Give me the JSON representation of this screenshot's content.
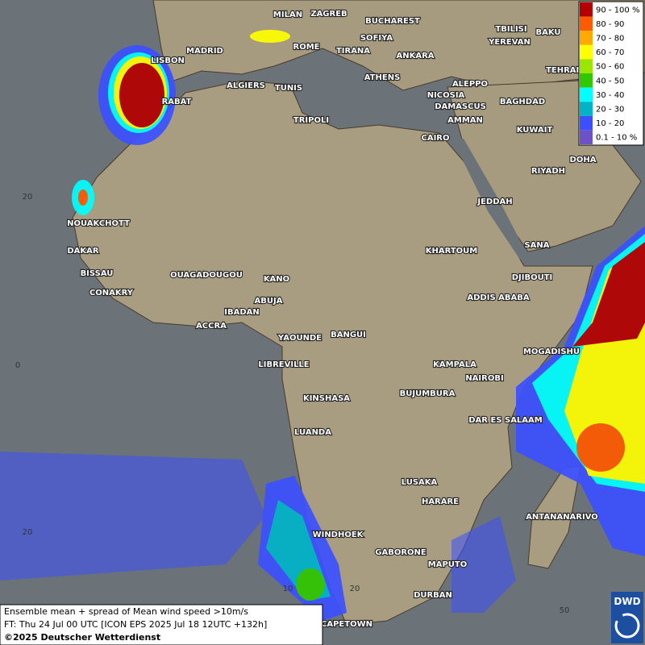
{
  "legend": {
    "items": [
      {
        "label": "90 - 100 %",
        "color": "#b40000"
      },
      {
        "label": "80 - 90",
        "color": "#ff5a00"
      },
      {
        "label": "70 - 80",
        "color": "#ffaa00"
      },
      {
        "label": "60 - 70",
        "color": "#ffff00"
      },
      {
        "label": "50 - 60",
        "color": "#9be600"
      },
      {
        "label": "40 - 50",
        "color": "#32c800"
      },
      {
        "label": "30 - 40",
        "color": "#00ffff"
      },
      {
        "label": "20 - 30",
        "color": "#00b4c8"
      },
      {
        "label": "10 - 20",
        "color": "#3c50ff"
      },
      {
        "label": "0.1 - 10 %",
        "color": "#6e50c8"
      }
    ]
  },
  "cities": [
    "MILAN",
    "ZAGREB",
    "BUCHAREST",
    "SOFIYA",
    "TBILISI",
    "BAKU",
    "YEREVAN",
    "ROME",
    "TIRANA",
    "ANKARA",
    "TEHRAN",
    "LISBON",
    "MADRID",
    "ATHENS",
    "ALGIERS",
    "TUNIS",
    "ALEPPO",
    "RABAT",
    "NICOSIA",
    "BAGHDAD",
    "TRIPOLI",
    "DAMASCUS",
    "AMMAN",
    "KUWAIT",
    "CAIRO",
    "DOHA",
    "RIYADH",
    "JEDDAH",
    "NOUAKCHOTT",
    "SANA",
    "KHARTOUM",
    "DAKAR",
    "BISSAU",
    "DJIBOUTI",
    "OUAGADOUGOU",
    "KANO",
    "CONAKRY",
    "ADDIS ABABA",
    "ABUJA",
    "IBADAN",
    "ACCRA",
    "YAOUNDE",
    "BANGUI",
    "MOGADISHU",
    "LIBREVILLE",
    "KAMPALA",
    "NAIROBI",
    "KINSHASA",
    "BUJUMBURA",
    "DAR ES SALAAM",
    "LUANDA",
    "LUSAKA",
    "HARARE",
    "ANTANANARIVO",
    "WINDHOEK",
    "GABORONE",
    "MAPUTO",
    "DURBAN",
    "CAPETOWN"
  ],
  "grid_labels": {
    "latitude": [
      "20",
      "0",
      "20"
    ],
    "longitude": [
      "10",
      "20",
      "50"
    ]
  },
  "footer": {
    "lines": [
      "Ensemble mean + spread of Mean wind speed >10m/s",
      "FT: Thu 24 Jul 00 UTC [ICON EPS 2025 Jul 18 12UTC +132h]"
    ],
    "copyright": "©2025 Deutscher Wetterdienst"
  },
  "logo": {
    "text": "DWD"
  }
}
